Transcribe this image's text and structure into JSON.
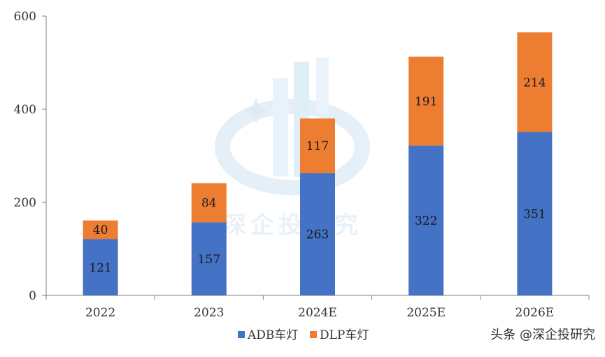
{
  "chart_data": {
    "type": "bar",
    "stacked": true,
    "categories": [
      "2022",
      "2023",
      "2024E",
      "2025E",
      "2026E"
    ],
    "series": [
      {
        "name": "ADB车灯",
        "values": [
          121,
          157,
          263,
          322,
          351
        ],
        "color": "#4472C4"
      },
      {
        "name": "DLP车灯",
        "values": [
          40,
          84,
          117,
          191,
          214
        ],
        "color": "#ED7D31"
      }
    ],
    "yticks": [
      0,
      200,
      400,
      600
    ],
    "ylim": [
      0,
      600
    ],
    "grid": false,
    "legend_position": "bottom"
  },
  "watermark": {
    "text": "深企投研究",
    "icon": "shenqitou-logo-icon"
  },
  "source_credit": "头条 @深企投研究"
}
